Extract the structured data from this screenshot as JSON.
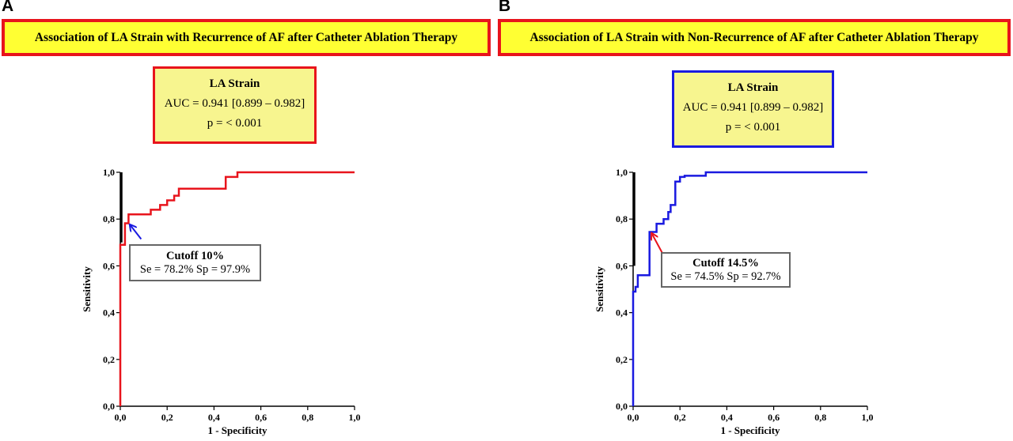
{
  "panels": [
    {
      "letter": "A",
      "banner": "Association of LA Strain with Recurrence of AF after Catheter Ablation Therapy",
      "box": {
        "title": "LA Strain",
        "auc": "AUC = 0.941 [0.899 – 0.982]",
        "p": "p = < 0.001"
      },
      "cutoff": {
        "title": "Cutoff  10%",
        "values": "Se = 78.2%  Sp = 97.9%"
      }
    },
    {
      "letter": "B",
      "banner": "Association of LA Strain with Non-Recurrence of AF after Catheter Ablation Therapy",
      "box": {
        "title": "LA Strain",
        "auc": "AUC = 0.941 [0.899 – 0.982]",
        "p": "p = < 0.001"
      },
      "cutoff": {
        "title": "Cutoff  14.5%",
        "values": "Se = 74.5%  Sp = 92.7%"
      }
    }
  ],
  "colors": {
    "banner_bg": "#ffff33",
    "banner_border": "#e8141c",
    "box_bg": "#f7f58f",
    "curve_A": "#e8141c",
    "curve_B": "#1a1ae0"
  },
  "chart_data": [
    {
      "type": "line",
      "title": "",
      "xlabel": "1 - Specificity",
      "ylabel": "Sensitivity",
      "xlim": [
        0,
        1
      ],
      "ylim": [
        0,
        1
      ],
      "xticks": [
        "0,0",
        "0,2",
        "0,4",
        "0,6",
        "0,8",
        "1,0"
      ],
      "yticks": [
        "0,0",
        "0,2",
        "0,4",
        "0,6",
        "0,8",
        "1,0"
      ],
      "reference_segment": {
        "x": [
          0,
          0
        ],
        "y": [
          0.7,
          1.0
        ]
      },
      "series": [
        {
          "color": "#e8141c",
          "x": [
            0,
            0,
            0.02,
            0.02,
            0.035,
            0.035,
            0.13,
            0.13,
            0.17,
            0.17,
            0.2,
            0.2,
            0.23,
            0.23,
            0.25,
            0.25,
            0.45,
            0.45,
            0.5,
            0.5,
            1.0
          ],
          "y": [
            0,
            0.69,
            0.69,
            0.782,
            0.782,
            0.82,
            0.82,
            0.84,
            0.84,
            0.86,
            0.86,
            0.88,
            0.88,
            0.9,
            0.9,
            0.93,
            0.93,
            0.98,
            0.98,
            1.0,
            1.0
          ]
        }
      ],
      "annotation": {
        "x": 0.035,
        "y": 0.782,
        "arrow_color": "#1a1ae0"
      }
    },
    {
      "type": "line",
      "title": "",
      "xlabel": "1 - Specificity",
      "ylabel": "Sensitivity",
      "xlim": [
        0,
        1
      ],
      "ylim": [
        0,
        1
      ],
      "xticks": [
        "0,0",
        "0,2",
        "0,4",
        "0,6",
        "0,8",
        "1,0"
      ],
      "yticks": [
        "0,0",
        "0,2",
        "0,4",
        "0,6",
        "0,8",
        "1,0"
      ],
      "reference_segment": {
        "x": [
          0,
          0
        ],
        "y": [
          0.6,
          1.0
        ]
      },
      "series": [
        {
          "color": "#1a1ae0",
          "x": [
            0,
            0,
            0.01,
            0.01,
            0.02,
            0.02,
            0.07,
            0.07,
            0.1,
            0.1,
            0.13,
            0.13,
            0.15,
            0.15,
            0.16,
            0.16,
            0.18,
            0.18,
            0.2,
            0.2,
            0.22,
            0.22,
            0.31,
            0.31,
            1.0
          ],
          "y": [
            0,
            0.49,
            0.49,
            0.51,
            0.51,
            0.56,
            0.56,
            0.745,
            0.745,
            0.78,
            0.78,
            0.8,
            0.8,
            0.83,
            0.83,
            0.86,
            0.86,
            0.96,
            0.96,
            0.98,
            0.98,
            0.985,
            0.985,
            1.0,
            1.0
          ]
        }
      ],
      "annotation": {
        "x": 0.073,
        "y": 0.745,
        "arrow_color": "#e8141c"
      }
    }
  ]
}
